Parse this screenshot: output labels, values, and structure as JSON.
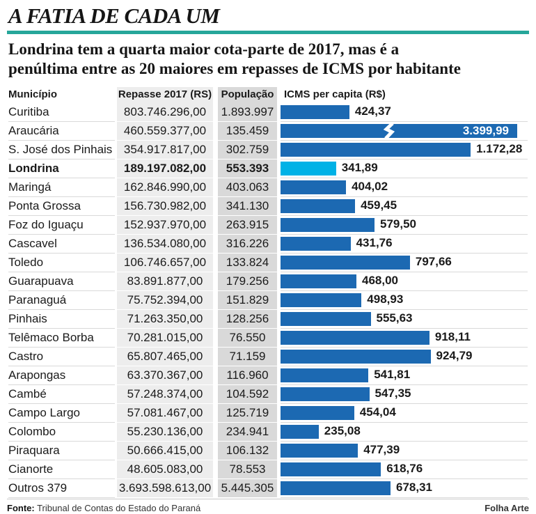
{
  "header": {
    "title": "A FATIA DE CADA UM",
    "subtitle_line1": "Londrina tem a quarta maior cota-parte de 2017, mas é a",
    "subtitle_line2": "penúltima entre as 20 maiores em repasses de ICMS por habitante"
  },
  "table_headers": {
    "municipio": "Município",
    "repasse": "Repasse 2017 (RS)",
    "populacao": "População",
    "icms": "ICMS per capita (R$)"
  },
  "chart_data": {
    "type": "bar",
    "orientation": "horizontal",
    "title": "ICMS per capita (R$)",
    "value_unit": "R$ per capita",
    "bar_color": "#1c69b2",
    "highlight_color": "#00b2e6",
    "axis_break_on": "Araucária",
    "rows": [
      {
        "municipio": "Curitiba",
        "repasse": "803.746.296,00",
        "populacao": "1.893.997",
        "icms_label": "424,37",
        "icms": 424.37
      },
      {
        "municipio": "Araucária",
        "repasse": "460.559.377,00",
        "populacao": "135.459",
        "icms_label": "3.399,99",
        "icms": 3399.99,
        "truncated": true,
        "label_inside": true
      },
      {
        "municipio": "S. José dos Pinhais",
        "repasse": "354.917.817,00",
        "populacao": "302.759",
        "icms_label": "1.172,28",
        "icms": 1172.28
      },
      {
        "municipio": "Londrina",
        "repasse": "189.197.082,00",
        "populacao": "553.393",
        "icms_label": "341,89",
        "icms": 341.89,
        "highlight": true
      },
      {
        "municipio": "Maringá",
        "repasse": "162.846.990,00",
        "populacao": "403.063",
        "icms_label": "404,02",
        "icms": 404.02
      },
      {
        "municipio": "Ponta Grossa",
        "repasse": "156.730.982,00",
        "populacao": "341.130",
        "icms_label": "459,45",
        "icms": 459.45
      },
      {
        "municipio": "Foz do Iguaçu",
        "repasse": "152.937.970,00",
        "populacao": "263.915",
        "icms_label": "579,50",
        "icms": 579.5
      },
      {
        "municipio": "Cascavel",
        "repasse": "136.534.080,00",
        "populacao": "316.226",
        "icms_label": "431,76",
        "icms": 431.76
      },
      {
        "municipio": "Toledo",
        "repasse": "106.746.657,00",
        "populacao": "133.824",
        "icms_label": "797,66",
        "icms": 797.66
      },
      {
        "municipio": "Guarapuava",
        "repasse": "83.891.877,00",
        "populacao": "179.256",
        "icms_label": "468,00",
        "icms": 468.0
      },
      {
        "municipio": "Paranaguá",
        "repasse": "75.752.394,00",
        "populacao": "151.829",
        "icms_label": "498,93",
        "icms": 498.93
      },
      {
        "municipio": "Pinhais",
        "repasse": "71.263.350,00",
        "populacao": "128.256",
        "icms_label": "555,63",
        "icms": 555.63
      },
      {
        "municipio": "Telêmaco Borba",
        "repasse": "70.281.015,00",
        "populacao": "76.550",
        "icms_label": "918,11",
        "icms": 918.11
      },
      {
        "municipio": "Castro",
        "repasse": "65.807.465,00",
        "populacao": "71.159",
        "icms_label": "924,79",
        "icms": 924.79
      },
      {
        "municipio": "Arapongas",
        "repasse": "63.370.367,00",
        "populacao": "116.960",
        "icms_label": "541,81",
        "icms": 541.81
      },
      {
        "municipio": "Cambé",
        "repasse": "57.248.374,00",
        "populacao": "104.592",
        "icms_label": "547,35",
        "icms": 547.35
      },
      {
        "municipio": "Campo Largo",
        "repasse": "57.081.467,00",
        "populacao": "125.719",
        "icms_label": "454,04",
        "icms": 454.04
      },
      {
        "municipio": "Colombo",
        "repasse": "55.230.136,00",
        "populacao": "234.941",
        "icms_label": "235,08",
        "icms": 235.08
      },
      {
        "municipio": "Piraquara",
        "repasse": "50.666.415,00",
        "populacao": "106.132",
        "icms_label": "477,39",
        "icms": 477.39
      },
      {
        "municipio": "Cianorte",
        "repasse": "48.605.083,00",
        "populacao": "78.553",
        "icms_label": "618,76",
        "icms": 618.76
      },
      {
        "municipio": "Outros 379",
        "repasse": "3.693.598.613,00",
        "populacao": "5.445.305",
        "icms_label": "678,31",
        "icms": 678.31
      }
    ]
  },
  "footer": {
    "fonte_label": "Fonte:",
    "fonte_text": " Tribunal de Contas do Estado do Paraná",
    "credit": "Folha Arte"
  }
}
